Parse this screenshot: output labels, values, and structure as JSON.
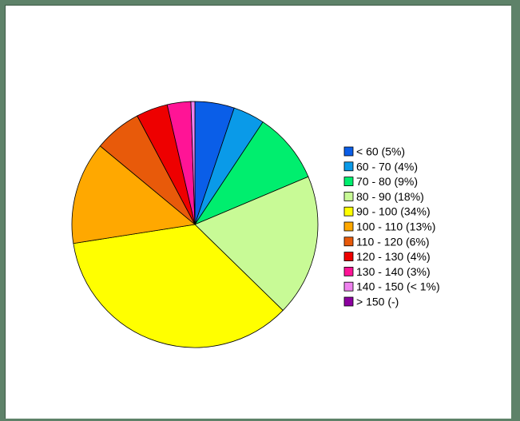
{
  "chart_data": {
    "type": "pie",
    "title": "",
    "legend_position": "right",
    "slices": [
      {
        "label": "< 60 (5%)",
        "value": 5,
        "color": "#0a5ee8"
      },
      {
        "label": "60 - 70 (4%)",
        "value": 4,
        "color": "#0a9ae8"
      },
      {
        "label": "70 - 80 (9%)",
        "value": 9,
        "color": "#00ee6e"
      },
      {
        "label": "80 - 90 (18%)",
        "value": 18,
        "color": "#c8fa96"
      },
      {
        "label": "90 - 100 (34%)",
        "value": 34,
        "color": "#ffff00"
      },
      {
        "label": "100 - 110 (13%)",
        "value": 13,
        "color": "#ffa800"
      },
      {
        "label": "110 - 120 (6%)",
        "value": 6,
        "color": "#e85a0a"
      },
      {
        "label": "120 - 130 (4%)",
        "value": 4,
        "color": "#ee0000"
      },
      {
        "label": "130 - 140 (3%)",
        "value": 3,
        "color": "#ff1496"
      },
      {
        "label": "140 - 150 (< 1%)",
        "value": 0.5,
        "color": "#ee82ee"
      },
      {
        "label": "> 150 (-)",
        "value": 0,
        "color": "#8c00a0"
      }
    ]
  }
}
